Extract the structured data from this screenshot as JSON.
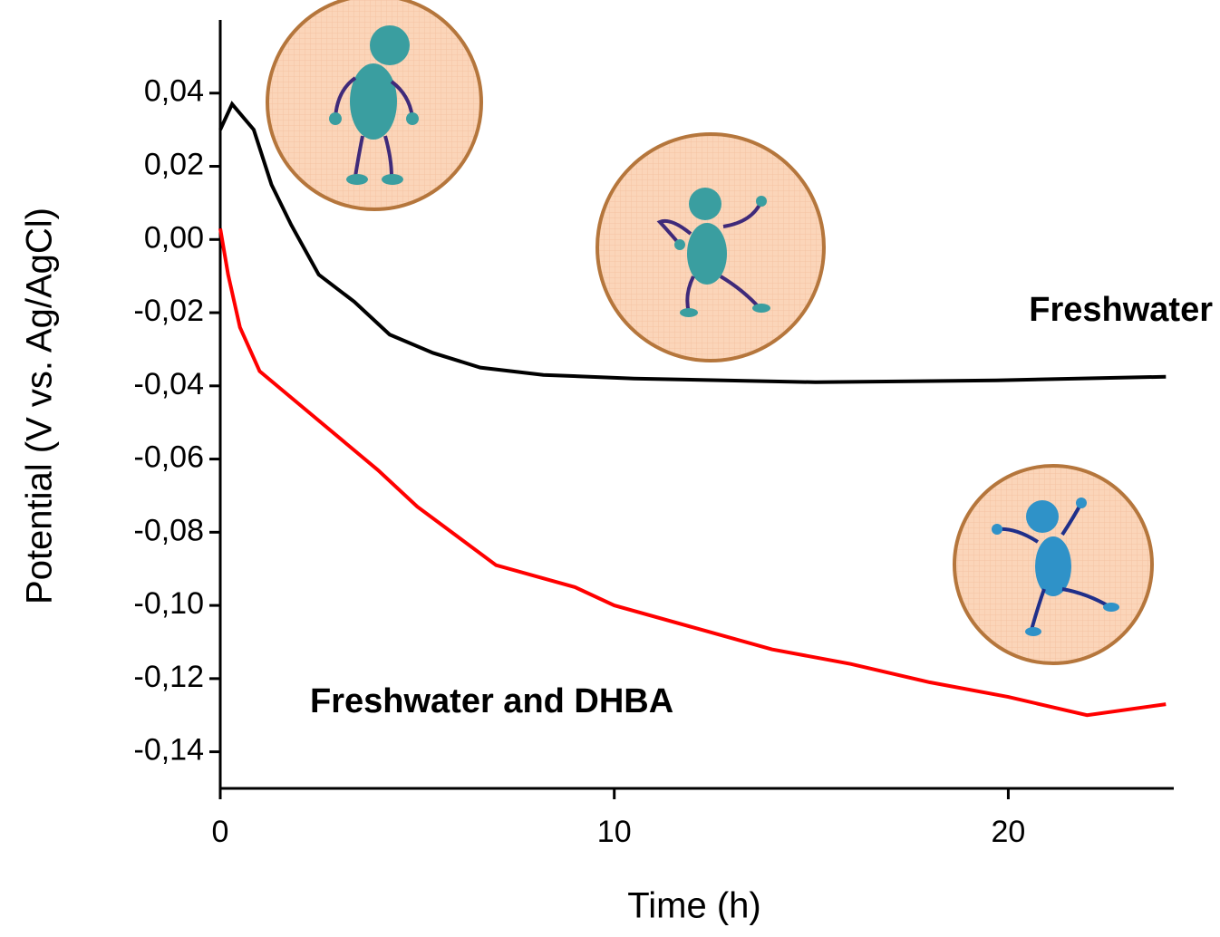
{
  "chart_data": {
    "type": "line",
    "xlabel": "Time (h)",
    "ylabel": "Potential (V vs. Ag/AgCl)",
    "xlim": [
      0,
      24.2
    ],
    "xticks": [
      0,
      10,
      20
    ],
    "ylim": [
      -0.15,
      0.06
    ],
    "yticks": [
      {
        "value": 0.04,
        "label": "0,04"
      },
      {
        "value": 0.02,
        "label": "0,02"
      },
      {
        "value": 0,
        "label": "0,00"
      },
      {
        "value": -0.02,
        "label": "-0,02"
      },
      {
        "value": -0.04,
        "label": "-0,04"
      },
      {
        "value": -0.06,
        "label": "-0,06"
      },
      {
        "value": -0.08,
        "label": "-0,08"
      },
      {
        "value": -0.1,
        "label": "-0,10"
      },
      {
        "value": -0.12,
        "label": "-0,12"
      },
      {
        "value": -0.14,
        "label": "-0,14"
      }
    ],
    "series": [
      {
        "name": "Freshwater",
        "color": "#000000",
        "x": [
          0,
          0.3,
          0.85,
          1.3,
          1.8,
          2.5,
          3.4,
          4.3,
          5.4,
          6.6,
          8.2,
          10.5,
          15.1,
          19.7,
          24
        ],
        "values": [
          0.03,
          0.037,
          0.03,
          0.015,
          0.004,
          -0.0096,
          -0.017,
          -0.026,
          -0.031,
          -0.035,
          -0.037,
          -0.038,
          -0.039,
          -0.0385,
          -0.0375
        ]
      },
      {
        "name": "Freshwater and DHBA",
        "color": "#ff0000",
        "x": [
          0,
          0.2,
          0.5,
          1,
          2,
          3,
          4,
          5,
          6,
          7,
          8,
          9,
          10,
          12,
          14,
          16,
          18,
          20,
          22,
          24
        ],
        "values": [
          0.003,
          -0.0096,
          -0.024,
          -0.036,
          -0.045,
          -0.054,
          -0.063,
          -0.073,
          -0.081,
          -0.089,
          -0.092,
          -0.095,
          -0.1,
          -0.106,
          -0.112,
          -0.116,
          -0.121,
          -0.125,
          -0.13,
          -0.127
        ]
      }
    ]
  }
}
